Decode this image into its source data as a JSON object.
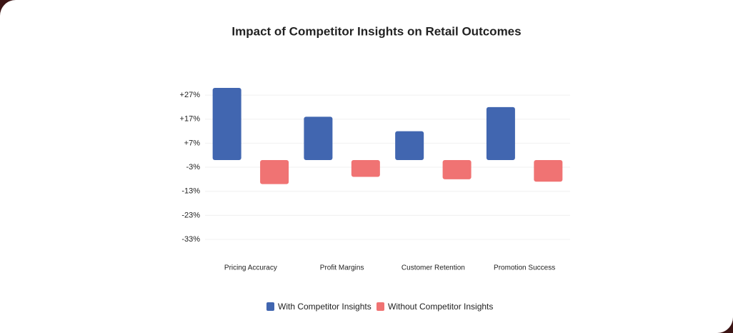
{
  "chart_data": {
    "type": "bar",
    "title": "Impact of Competitor Insights on Retail Outcomes",
    "categories": [
      "Pricing Accuracy",
      "Profit Margins",
      "Customer Retention",
      "Promotion Success"
    ],
    "series": [
      {
        "name": "With Competitor Insights",
        "color": "#4166b0",
        "values": [
          30,
          18,
          12,
          22
        ]
      },
      {
        "name": "Without Competitor Insights",
        "color": "#f07373",
        "values": [
          -10,
          -7,
          -8,
          -9
        ]
      }
    ],
    "ylim": [
      -33,
      30
    ],
    "yticks": [
      {
        "value": 27,
        "label": "+27%"
      },
      {
        "value": 17,
        "label": "+17%"
      },
      {
        "value": 7,
        "label": "+7%"
      },
      {
        "value": -3,
        "label": "-3%"
      },
      {
        "value": -13,
        "label": "-13%"
      },
      {
        "value": -23,
        "label": "-23%"
      },
      {
        "value": -33,
        "label": "-33%"
      }
    ],
    "grid": true,
    "legend": "bottom"
  }
}
